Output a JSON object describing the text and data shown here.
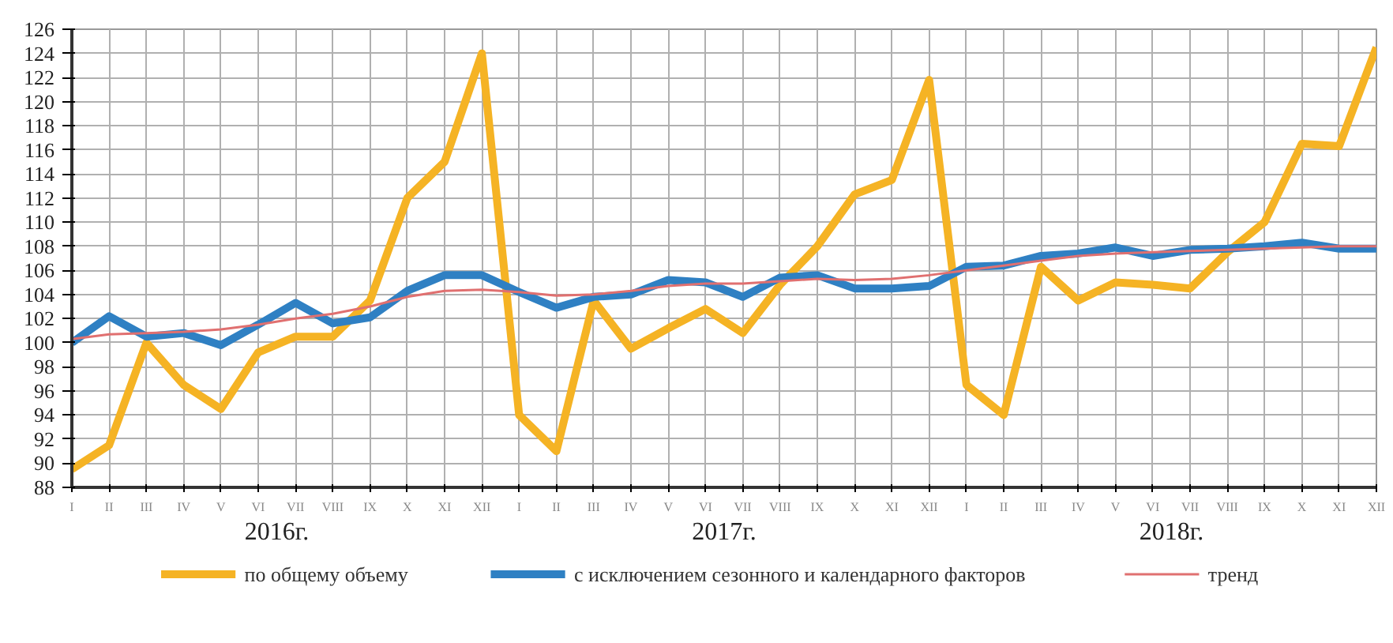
{
  "chart_data": {
    "type": "line",
    "categories": [
      "I",
      "II",
      "III",
      "IV",
      "V",
      "VI",
      "VII",
      "VIII",
      "IX",
      "X",
      "XI",
      "XII",
      "I",
      "II",
      "III",
      "IV",
      "V",
      "VI",
      "VII",
      "VIII",
      "IX",
      "X",
      "XI",
      "XII",
      "I",
      "II",
      "III",
      "IV",
      "V",
      "VI",
      "VII",
      "VIII",
      "IX",
      "X",
      "XI",
      "XII"
    ],
    "annotations": [
      "2016г.",
      "2017г.",
      "2018г."
    ],
    "ylim": [
      88,
      126
    ],
    "yticks": [
      88,
      90,
      92,
      94,
      96,
      98,
      100,
      102,
      104,
      106,
      108,
      110,
      112,
      114,
      116,
      118,
      120,
      122,
      124,
      126
    ],
    "grid": true,
    "legend": "bottom",
    "line_style": "solid",
    "marker": "none",
    "series": [
      {
        "name": "по общему объему",
        "color": "#f5b324",
        "values": [
          89.5,
          91.5,
          100,
          96.5,
          94.5,
          99.2,
          100.5,
          100.5,
          103.5,
          112,
          115,
          124,
          94,
          91,
          103.5,
          99.5,
          101.2,
          102.8,
          100.8,
          104.8,
          108,
          112.3,
          113.5,
          121.8,
          96.5,
          94,
          106.3,
          103.5,
          105,
          104.8,
          104.5,
          107.5,
          110,
          116.5,
          116.3,
          124.5
        ]
      },
      {
        "name": "с исключением сезонного и календарного факторов",
        "color": "#2f80c3",
        "values": [
          100,
          102.2,
          100.5,
          100.8,
          99.8,
          101.5,
          103.3,
          101.6,
          102.1,
          104.3,
          105.6,
          105.6,
          104.2,
          102.9,
          103.8,
          104,
          105.2,
          105,
          103.8,
          105.4,
          105.6,
          104.5,
          104.5,
          104.7,
          106.3,
          106.4,
          107.2,
          107.4,
          107.9,
          107.2,
          107.7,
          107.8,
          108,
          108.3,
          107.8,
          107.8
        ]
      },
      {
        "name": "тренд",
        "color": "#e07070",
        "values": [
          100.3,
          100.7,
          100.8,
          100.9,
          101.1,
          101.5,
          102,
          102.4,
          103,
          103.8,
          104.3,
          104.4,
          104.2,
          103.9,
          104,
          104.3,
          104.7,
          104.9,
          104.9,
          105.1,
          105.3,
          105.2,
          105.3,
          105.6,
          106,
          106.4,
          106.8,
          107.2,
          107.4,
          107.5,
          107.6,
          107.7,
          107.8,
          107.9,
          108,
          108
        ]
      }
    ]
  }
}
